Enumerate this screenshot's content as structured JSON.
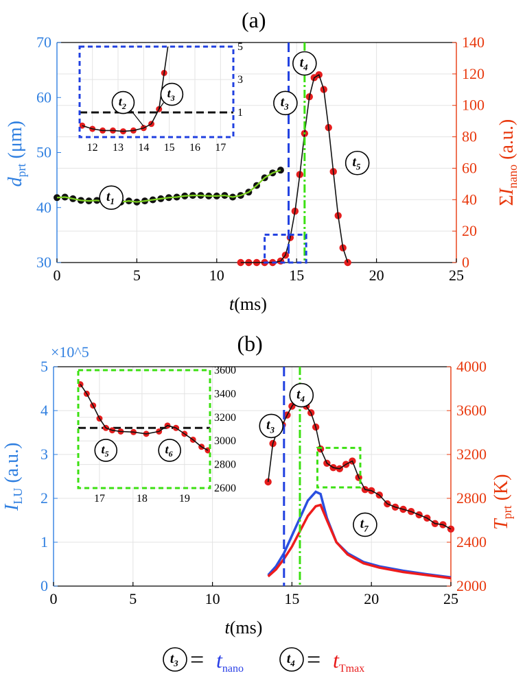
{
  "colors": {
    "left_axis": "#2f7fe0",
    "right_axis": "#e8380d",
    "marker": "#e51d1d",
    "fit": "#111111",
    "green": "#7ed321",
    "blue_dash": "#2040e0",
    "green_dash": "#3ce012"
  },
  "chart_data": [
    {
      "panel": "(a)",
      "type": "line",
      "xlabel": {
        "italic": "t",
        "rest": "(ms)"
      },
      "xlim": [
        0,
        25
      ],
      "xticks": [
        "0",
        "5",
        "10",
        "15",
        "20",
        "25"
      ],
      "ylabel_left": {
        "italic": "d",
        "sub": "prt",
        "rest": " (μm)"
      },
      "ylim_left": [
        30,
        70
      ],
      "yticks_left": [
        "30",
        "40",
        "50",
        "60",
        "70"
      ],
      "ylabel_right": {
        "pre": "Σ",
        "italic": "I",
        "sub": "nano",
        "rest": " (a.u.)"
      },
      "ylim_right": [
        0,
        150
      ],
      "yticks_right": [
        "0",
        "20",
        "40",
        "60",
        "80",
        "100",
        "120",
        "140"
      ],
      "grid": true,
      "series": [
        {
          "axis": "left",
          "style": "black-dots-green-line",
          "x": [
            0,
            0.5,
            1,
            1.5,
            2,
            2.5,
            3,
            3.5,
            4,
            4.5,
            5,
            5.5,
            6,
            6.5,
            7,
            7.5,
            8,
            8.5,
            9,
            9.5,
            10,
            10.5,
            11,
            11.5,
            12,
            12.5,
            13,
            13.5,
            14
          ],
          "y": [
            41.8,
            41.9,
            41.6,
            41.3,
            41.2,
            41.3,
            41.1,
            41.0,
            41.0,
            41.2,
            41.0,
            41.2,
            41.4,
            41.6,
            41.8,
            41.9,
            42.1,
            42.2,
            42.2,
            42.1,
            42.1,
            42.2,
            41.9,
            42.2,
            42.8,
            44.0,
            45.4,
            46.3,
            46.8
          ]
        },
        {
          "axis": "right",
          "style": "red-dots-black-fit",
          "x": [
            11.5,
            12,
            12.5,
            13,
            13.5,
            14,
            14.3,
            14.6,
            14.9,
            15.2,
            15.5,
            15.8,
            16.1,
            16.4,
            16.7,
            17.0,
            17.3,
            17.6,
            17.9,
            18.2
          ],
          "y": [
            0,
            0,
            0,
            0,
            0,
            1,
            5,
            17,
            35,
            60,
            88,
            113,
            126,
            128,
            118,
            92,
            62,
            32,
            10,
            0
          ]
        }
      ],
      "vlines": [
        {
          "x": 14.5,
          "style": "blue-dashed"
        },
        {
          "x": 15.5,
          "style": "green-dashdot"
        }
      ],
      "annotations": [
        {
          "label": "t",
          "sub": "1",
          "x": 3.4,
          "y": 41.8
        },
        {
          "label": "t",
          "sub": "3",
          "x": 14.3,
          "y": 59.0
        },
        {
          "label": "t",
          "sub": "4",
          "x": 15.5,
          "y": 66.2
        },
        {
          "label": "t",
          "sub": "5",
          "x": 18.8,
          "y": 48.1
        }
      ],
      "zoom_box": {
        "x": [
          13,
          15.6
        ],
        "y": [
          0,
          19
        ],
        "style": "blue-dashed"
      },
      "inset": {
        "xlim": [
          11.5,
          17.5
        ],
        "xticks": [
          "12",
          "13",
          "14",
          "15",
          "16",
          "17"
        ],
        "ylim": [
          -0.5,
          5
        ],
        "yticks": [
          "1",
          "3",
          "5"
        ],
        "hline": 1,
        "x": [
          11.6,
          12.0,
          12.4,
          12.8,
          13.2,
          13.6,
          14.0,
          14.3,
          14.6,
          14.8,
          15.0
        ],
        "y": [
          0.2,
          0.0,
          -0.1,
          -0.1,
          -0.15,
          -0.1,
          0.05,
          0.3,
          1.2,
          3.4,
          5.6
        ],
        "annotations": [
          {
            "label": "t",
            "sub": "2",
            "x": 13.2,
            "y": 1.6,
            "arrow_to": [
              14.0,
              0.15
            ]
          },
          {
            "label": "t",
            "sub": "3",
            "x": 15.1,
            "y": 2.1,
            "arrow_to": [
              14.6,
              1.2
            ]
          }
        ]
      }
    },
    {
      "panel": "(b)",
      "type": "line",
      "xlabel": {
        "italic": "t",
        "rest": "(ms)"
      },
      "xlim": [
        0,
        25
      ],
      "xticks": [
        "0",
        "5",
        "10",
        "15",
        "20",
        "25"
      ],
      "ylabel_left": {
        "italic": "I",
        "sub": "LU",
        "rest": " (a.u.)"
      },
      "ylim_left": [
        0,
        5
      ],
      "yticks_left": [
        "0",
        "1",
        "2",
        "3",
        "4",
        "5"
      ],
      "left_exponent": "×10^5",
      "ylabel_right": {
        "italic": "T",
        "sub": "prt",
        "rest": " (K)"
      },
      "ylim_right": [
        2000,
        4000
      ],
      "yticks_right": [
        "2000",
        "2400",
        "2800",
        "3200",
        "3600",
        "4000"
      ],
      "grid": true,
      "series": [
        {
          "axis": "left",
          "style": "blue-line",
          "x": [
            13.5,
            14,
            14.5,
            15,
            15.5,
            16,
            16.5,
            16.8,
            17.2,
            17.8,
            18.5,
            19.5,
            20.5,
            22,
            23.5,
            25
          ],
          "y": [
            0.25,
            0.45,
            0.75,
            1.15,
            1.55,
            1.95,
            2.15,
            2.1,
            1.55,
            1.0,
            0.75,
            0.55,
            0.45,
            0.35,
            0.27,
            0.2
          ]
        },
        {
          "axis": "left",
          "style": "red-line",
          "x": [
            13.5,
            14,
            14.5,
            15,
            15.5,
            16,
            16.5,
            16.8,
            17.2,
            17.8,
            18.5,
            19.5,
            20.5,
            22,
            23.5,
            25
          ],
          "y": [
            0.22,
            0.38,
            0.62,
            0.9,
            1.25,
            1.6,
            1.82,
            1.85,
            1.5,
            1.0,
            0.72,
            0.52,
            0.42,
            0.32,
            0.25,
            0.18
          ]
        },
        {
          "axis": "right",
          "style": "red-dots-black-fit",
          "x": [
            13.5,
            13.8,
            14.1,
            14.4,
            14.7,
            15.0,
            15.3,
            15.6,
            15.9,
            16.2,
            16.5,
            16.8,
            17.2,
            17.6,
            18.0,
            18.4,
            18.8,
            19.2,
            19.6,
            20.0,
            20.5,
            21,
            21.5,
            22,
            22.5,
            23,
            23.5,
            24,
            24.5,
            25
          ],
          "y": [
            2950,
            3300,
            3420,
            3470,
            3560,
            3640,
            3700,
            3670,
            3640,
            3580,
            3450,
            3250,
            3120,
            3080,
            3070,
            3110,
            3140,
            2990,
            2880,
            2870,
            2830,
            2750,
            2720,
            2700,
            2680,
            2650,
            2620,
            2570,
            2560,
            2520
          ]
        }
      ],
      "vlines": [
        {
          "x": 14.5,
          "style": "blue-dashed"
        },
        {
          "x": 15.5,
          "style": "green-dashdot"
        }
      ],
      "annotations": [
        {
          "label": "t",
          "sub": "3",
          "x": 13.7,
          "y": 3.65
        },
        {
          "label": "t",
          "sub": "4",
          "x": 15.6,
          "y": 4.35
        },
        {
          "label": "t",
          "sub": "7",
          "x": 19.6,
          "y": 1.4
        }
      ],
      "zoom_box": {
        "x": [
          16.6,
          19.3
        ],
        "y": [
          2900,
          3260
        ],
        "style": "green-dashed"
      },
      "inset": {
        "xlim": [
          16.5,
          19.6
        ],
        "xticks": [
          "17",
          "18",
          "19"
        ],
        "ylim": [
          2600,
          3600
        ],
        "yticks": [
          "2600",
          "2800",
          "3000",
          "3200",
          "3400",
          "3600"
        ],
        "hline": 3110,
        "x": [
          16.55,
          16.7,
          16.85,
          17.0,
          17.15,
          17.3,
          17.5,
          17.8,
          18.1,
          18.4,
          18.6,
          18.8,
          19.0,
          19.2,
          19.4,
          19.55
        ],
        "y": [
          3480,
          3400,
          3300,
          3190,
          3110,
          3090,
          3080,
          3075,
          3060,
          3080,
          3130,
          3110,
          3060,
          3010,
          2950,
          2920
        ],
        "annotations": [
          {
            "label": "t",
            "sub": "5",
            "x": 17.15,
            "y": 2920
          },
          {
            "label": "t",
            "sub": "6",
            "x": 18.65,
            "y": 2920
          }
        ]
      }
    }
  ],
  "legend": [
    {
      "circle": "t",
      "circle_sub": "3",
      "eq": "=",
      "text": "t",
      "sub": "nano",
      "color": "#2a3fe6"
    },
    {
      "circle": "t",
      "circle_sub": "4",
      "eq": "=",
      "text": "t",
      "sub": "Tmax",
      "color": "#e81c1c"
    }
  ]
}
